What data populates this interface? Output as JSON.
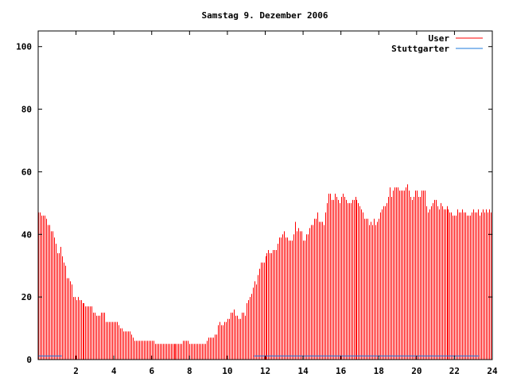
{
  "chart_data": {
    "type": "bar",
    "title": "Samstag 9. Dezember 2006",
    "xlabel": "",
    "ylabel": "",
    "xlim": [
      0,
      24
    ],
    "ylim": [
      0,
      105
    ],
    "x_ticks": [
      "2",
      "4",
      "6",
      "8",
      "10",
      "12",
      "14",
      "16",
      "18",
      "20",
      "22",
      "24"
    ],
    "x_tick_values": [
      2,
      4,
      6,
      8,
      10,
      12,
      14,
      16,
      18,
      20,
      22,
      24
    ],
    "y_ticks": [
      "0",
      "20",
      "40",
      "60",
      "80",
      "100"
    ],
    "y_tick_values": [
      0,
      20,
      40,
      60,
      80,
      100
    ],
    "legend_position": "top-right",
    "grid": false,
    "colors": {
      "User": "#ff0000",
      "Stuttgarter": "#1e78dc"
    },
    "series": [
      {
        "name": "User",
        "style": "impulses",
        "x_step_minutes": 5,
        "values": [
          47,
          47,
          46,
          46,
          46,
          45,
          43,
          43,
          41,
          41,
          39,
          37,
          34,
          34,
          36,
          33,
          31,
          30,
          26,
          26,
          25,
          24,
          20,
          20,
          19,
          20,
          19,
          19,
          18,
          18,
          17,
          17,
          17,
          17,
          17,
          15,
          15,
          14,
          14,
          14,
          15,
          15,
          15,
          12,
          12,
          12,
          12,
          12,
          12,
          12,
          12,
          11,
          10,
          10,
          9,
          9,
          9,
          9,
          9,
          8,
          7,
          6,
          6,
          6,
          6,
          6,
          6,
          6,
          6,
          6,
          6,
          6,
          6,
          6,
          5,
          5,
          5,
          5,
          5,
          5,
          5,
          5,
          5,
          5,
          5,
          5,
          5,
          5,
          5,
          5,
          5,
          5,
          6,
          6,
          6,
          6,
          5,
          5,
          5,
          5,
          5,
          5,
          5,
          5,
          5,
          5,
          5,
          6,
          7,
          7,
          7,
          7,
          8,
          8,
          11,
          12,
          11,
          11,
          12,
          12,
          13,
          13,
          15,
          15,
          16,
          14,
          14,
          13,
          13,
          15,
          15,
          14,
          18,
          19,
          20,
          21,
          23,
          25,
          24,
          27,
          29,
          31,
          31,
          31,
          33,
          34,
          35,
          34,
          34,
          35,
          35,
          35,
          37,
          39,
          39,
          40,
          41,
          39,
          39,
          38,
          38,
          38,
          40,
          44,
          41,
          42,
          41,
          41,
          38,
          38,
          40,
          40,
          42,
          43,
          43,
          45,
          45,
          47,
          44,
          44,
          44,
          43,
          47,
          50,
          53,
          53,
          51,
          51,
          53,
          52,
          51,
          50,
          52,
          53,
          52,
          51,
          50,
          50,
          50,
          51,
          51,
          52,
          51,
          50,
          49,
          48,
          47,
          45,
          45,
          45,
          43,
          44,
          43,
          45,
          43,
          44,
          45,
          47,
          48,
          49,
          49,
          50,
          52,
          55,
          52,
          54,
          55,
          55,
          55,
          54,
          54,
          54,
          54,
          55,
          56,
          54,
          52,
          51,
          52,
          54,
          54,
          52,
          52,
          54,
          54,
          54,
          49,
          47,
          48,
          49,
          50,
          51,
          51,
          49,
          48,
          50,
          49,
          48,
          48,
          49,
          48,
          47,
          47,
          46,
          46,
          46,
          48,
          47,
          47,
          48,
          47,
          47,
          46,
          46,
          46,
          47,
          48,
          47,
          47,
          48,
          46,
          47,
          48,
          47,
          48,
          47,
          48,
          47
        ]
      },
      {
        "name": "Stuttgarter",
        "style": "lines",
        "segments": [
          {
            "from": 0,
            "to": 1.25,
            "value": 1
          },
          {
            "from": 11.4,
            "to": 23.3,
            "value": 1
          }
        ]
      }
    ]
  }
}
